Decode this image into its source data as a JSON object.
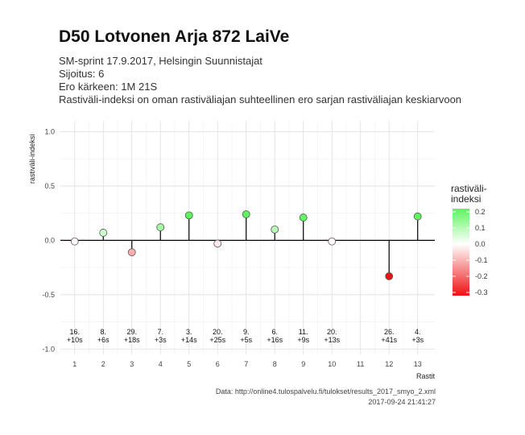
{
  "title": "D50 Lotvonen Arja 872 LaiVe",
  "subtitles": [
    "SM-sprint 17.9.2017, Helsingin Suunnistajat",
    "Sijoitus: 6",
    "Ero kärkeen: 1M 21S",
    "Rastiväli-indeksi on oman rastiväliajan suhteellinen ero sarjan rastiväliajan keskiarvoon"
  ],
  "caption": {
    "source": "Data: http://online4.tulospalvelu.fi/tulokset/results_2017_smyo_2.xml",
    "timestamp": "2017-09-24 21:41:27"
  },
  "chart_data": {
    "type": "scatter",
    "style": "lollipop",
    "xlabel": "Rastit",
    "ylabel": "rastiväli-indeksi",
    "ylim": [
      -1.05,
      1.1
    ],
    "xlim": [
      0.5,
      13.6
    ],
    "yticks": [
      1.0,
      0.5,
      0.0,
      -0.5,
      -1.0
    ],
    "ytick_labels": [
      "1.0",
      "0.5",
      "0.0",
      "-0.5",
      "-1.0"
    ],
    "xticks": [
      1,
      2,
      3,
      4,
      5,
      6,
      7,
      8,
      9,
      10,
      11,
      12,
      13
    ],
    "grid": true,
    "points": [
      {
        "x": 1,
        "y": -0.01,
        "rank": "16.",
        "diff": "+10s"
      },
      {
        "x": 2,
        "y": 0.07,
        "rank": "8.",
        "diff": "+6s"
      },
      {
        "x": 3,
        "y": -0.11,
        "rank": "29.",
        "diff": "+18s"
      },
      {
        "x": 4,
        "y": 0.12,
        "rank": "7.",
        "diff": "+3s"
      },
      {
        "x": 5,
        "y": 0.23,
        "rank": "3.",
        "diff": "+14s"
      },
      {
        "x": 6,
        "y": -0.03,
        "rank": "20.",
        "diff": "+25s"
      },
      {
        "x": 7,
        "y": 0.24,
        "rank": "9.",
        "diff": "+5s"
      },
      {
        "x": 8,
        "y": 0.1,
        "rank": "6.",
        "diff": "+16s"
      },
      {
        "x": 9,
        "y": 0.21,
        "rank": "11.",
        "diff": "+9s"
      },
      {
        "x": 10,
        "y": -0.01,
        "rank": "20.",
        "diff": "+13s"
      },
      {
        "x": 12,
        "y": -0.33,
        "rank": "26.",
        "diff": "+41s"
      },
      {
        "x": 13,
        "y": 0.22,
        "rank": "4.",
        "diff": "+3s"
      }
    ],
    "legend": {
      "title_lines": [
        "rastiväli-",
        "indeksi"
      ],
      "placement": "right",
      "range": [
        -0.32,
        0.22
      ],
      "ticks": [
        0.2,
        0.1,
        0.0,
        -0.1,
        -0.2,
        -0.3
      ],
      "tick_labels": [
        "0.2",
        "0.1",
        "0.0",
        "-0.1",
        "-0.2",
        "-0.3"
      ],
      "colors": {
        "low": "#ee1111",
        "mid": "#ffffff",
        "high": "#5cf55c"
      }
    }
  }
}
